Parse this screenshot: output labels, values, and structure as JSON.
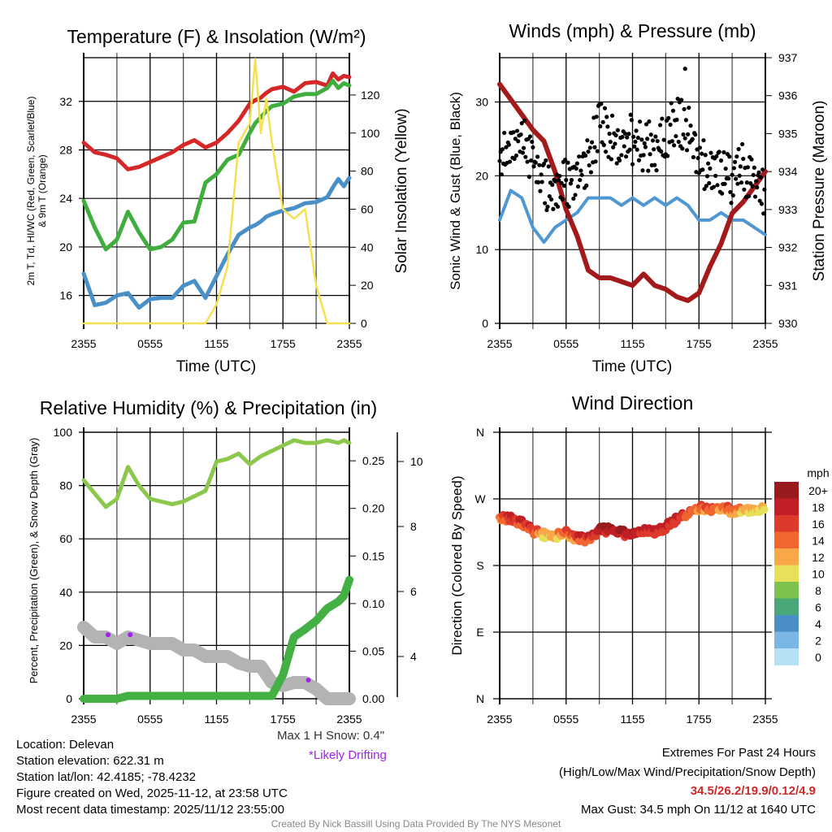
{
  "chart_data": [
    {
      "type": "line",
      "id": "temperature",
      "title": "Temperature (F) & Insolation (W/m²)",
      "xlabel": "Time (UTC)",
      "ylabel": "2m T, Td, HI/WC (Red, Green, Scarlet/Blue) & 9m T (Orange)",
      "ylabel_right": "Solar Insolation (Yellow)",
      "x_ticks": [
        "2355",
        "0555",
        "1155",
        "1755",
        "2355"
      ],
      "x_hours_range": [
        0,
        24
      ],
      "ylim": [
        13.7,
        35.6
      ],
      "y_ticks": [
        16,
        20,
        24,
        28,
        32
      ],
      "ylim_right": [
        0,
        139.6
      ],
      "y_ticks_right": [
        0,
        20,
        40,
        60,
        80,
        100,
        120
      ],
      "grid": true,
      "x": [
        0,
        1,
        2,
        3,
        4,
        5,
        6,
        7,
        8,
        9,
        10,
        11,
        12,
        13,
        14,
        15,
        15.5,
        16,
        16.5,
        17,
        18,
        19,
        20,
        21,
        22,
        22.5,
        23,
        23.5,
        24
      ],
      "series": [
        {
          "name": "2m T",
          "color": "#d62728",
          "axis": "left",
          "values": [
            28.6,
            27.8,
            27.6,
            27.3,
            26.4,
            26.6,
            27.0,
            27.4,
            27.8,
            28.4,
            28.8,
            28.2,
            28.6,
            29.4,
            30.4,
            31.8,
            32.1,
            32.3,
            32.7,
            33.0,
            33.2,
            32.8,
            33.5,
            33.6,
            33.3,
            34.3,
            33.8,
            34.1,
            34.0
          ]
        },
        {
          "name": "Dewpoint",
          "color": "#3fae3f",
          "axis": "left",
          "values": [
            23.8,
            21.6,
            19.8,
            20.6,
            22.9,
            21.2,
            19.8,
            20.0,
            20.6,
            22.0,
            22.1,
            25.3,
            26.0,
            27.2,
            27.6,
            29.4,
            30.2,
            30.7,
            31.2,
            31.6,
            31.8,
            32.4,
            32.6,
            32.6,
            33.1,
            33.7,
            33.1,
            33.5,
            33.3
          ]
        },
        {
          "name": "Wind Chill",
          "color": "#4a90c8",
          "axis": "left",
          "values": [
            17.8,
            15.2,
            15.4,
            16.0,
            16.2,
            15.0,
            15.7,
            15.8,
            15.8,
            16.8,
            17.2,
            15.8,
            17.6,
            19.4,
            21.0,
            21.6,
            21.8,
            22.1,
            22.5,
            22.7,
            23.0,
            23.2,
            23.6,
            23.7,
            24.1,
            24.9,
            25.6,
            25.0,
            25.7
          ]
        },
        {
          "name": "Solar Insolation",
          "color": "#f5e050",
          "axis": "right",
          "values": [
            0,
            0,
            0,
            0,
            0,
            0,
            0,
            0,
            0,
            0,
            0,
            0,
            10,
            30,
            95,
            105,
            139,
            100,
            118,
            95,
            60,
            55,
            60,
            20,
            0,
            0,
            0,
            0,
            0
          ]
        }
      ]
    },
    {
      "type": "line",
      "id": "winds",
      "title": "Winds (mph) & Pressure (mb)",
      "xlabel": "Time (UTC)",
      "ylabel": "Sonic Wind & Gust (Blue, Black)",
      "ylabel_right": "Station Pressure (Maroon)",
      "x_ticks": [
        "2355",
        "0555",
        "1155",
        "1755",
        "2355"
      ],
      "x_hours_range": [
        0,
        24
      ],
      "ylim": [
        0,
        36
      ],
      "y_ticks": [
        0,
        10,
        20,
        30
      ],
      "ylim_right": [
        930,
        937
      ],
      "y_ticks_right": [
        930,
        931,
        932,
        933,
        934,
        935,
        936,
        937
      ],
      "grid": true,
      "x": [
        0,
        1,
        2,
        3,
        4,
        5,
        6,
        7,
        8,
        9,
        10,
        11,
        12,
        13,
        14,
        15,
        16,
        17,
        18,
        19,
        20,
        21,
        22,
        23,
        24
      ],
      "series": [
        {
          "name": "Sonic Wind",
          "color": "#4f97d2",
          "axis": "left",
          "values": [
            14,
            18,
            17,
            13,
            11,
            13,
            14,
            15,
            17,
            17,
            17,
            16,
            17,
            16,
            17,
            16,
            17,
            16,
            14,
            14,
            15,
            14,
            14,
            13,
            12
          ]
        },
        {
          "name": "Pressure",
          "color": "#a31a1a",
          "axis": "right",
          "values": [
            936.3,
            935.9,
            935.5,
            935.1,
            934.8,
            934.0,
            933.0,
            932.3,
            931.4,
            931.2,
            931.2,
            931.1,
            931.0,
            931.3,
            931.0,
            930.9,
            930.7,
            930.6,
            930.8,
            931.5,
            932.1,
            932.9,
            933.2,
            933.6,
            934.0
          ]
        },
        {
          "name": "Gust",
          "color": "#000000",
          "axis": "left",
          "style": "dots",
          "values": [
            22,
            23,
            26,
            22,
            19,
            18,
            19,
            20,
            22,
            27,
            25,
            24,
            25,
            24,
            24,
            25,
            28,
            26,
            23,
            20,
            21,
            19,
            21,
            19,
            18
          ]
        }
      ],
      "max_gust_point": {
        "hour": 16.75,
        "value": 34.5
      }
    },
    {
      "type": "line",
      "id": "humidity",
      "title": "Relative Humidity (%) & Precipitation (in)",
      "ylabel": "Percent, Precipitation (Green), & Snow Depth (Gray)",
      "x_ticks": [
        "2355",
        "0555",
        "1155",
        "1755",
        "2355"
      ],
      "x_hours_range": [
        0,
        24
      ],
      "ylim": [
        0,
        100
      ],
      "y_ticks": [
        0,
        20,
        40,
        60,
        80,
        100
      ],
      "ylim_right": [
        0,
        0.28
      ],
      "y_ticks_right": [
        "0.00",
        "0.05",
        "0.10",
        "0.15",
        "0.20",
        "0.25"
      ],
      "ylim_snow": [
        2.7,
        10.9
      ],
      "y_ticks_snow": [
        4,
        6,
        8,
        10
      ],
      "grid": true,
      "x": [
        0,
        1,
        2,
        3,
        4,
        5,
        6,
        7,
        8,
        9,
        10,
        11,
        12,
        13,
        14,
        15,
        16,
        17,
        18,
        19,
        20,
        21,
        22,
        23,
        23.5,
        24
      ],
      "series": [
        {
          "name": "Relative Humidity",
          "color": "#8cc84b",
          "axis": "left",
          "values": [
            82,
            77,
            72,
            75,
            87,
            80,
            75,
            74,
            73,
            74,
            76,
            78,
            89,
            90,
            92,
            88,
            91,
            93,
            95,
            97,
            96,
            96,
            97,
            96,
            97,
            96
          ]
        },
        {
          "name": "Precipitation",
          "color": "#44b044",
          "axis": "right",
          "values": [
            0,
            0,
            0,
            0,
            0.003,
            0.003,
            0.003,
            0.003,
            0.003,
            0.003,
            0.003,
            0.003,
            0.003,
            0.003,
            0.003,
            0.003,
            0.003,
            0.003,
            0.025,
            0.065,
            0.073,
            0.082,
            0.095,
            0.102,
            0.108,
            0.125
          ]
        },
        {
          "name": "Snow Depth",
          "color": "#b3b3b3",
          "axis": "snow",
          "values": [
            4.9,
            4.6,
            4.6,
            4.4,
            4.6,
            4.5,
            4.4,
            4.4,
            4.4,
            4.2,
            4.2,
            4.0,
            4.0,
            4.0,
            3.8,
            3.7,
            3.7,
            3.2,
            3.1,
            3.2,
            3.2,
            3.0,
            2.7,
            2.7,
            2.7,
            2.7
          ]
        }
      ],
      "drifting_points": [
        {
          "hour": 2.2,
          "value": 24
        },
        {
          "hour": 4.2,
          "value": 24
        },
        {
          "hour": 20.3,
          "value": 7
        }
      ]
    },
    {
      "type": "scatter",
      "id": "wind_direction",
      "title": "Wind Direction",
      "ylabel": "Direction (Colored By Speed)",
      "x_ticks": [
        "2355",
        "0555",
        "1155",
        "1755",
        "2355"
      ],
      "x_hours_range": [
        0,
        24
      ],
      "y_ticks": [
        "N",
        "E",
        "S",
        "W",
        "N"
      ],
      "ylim": [
        0,
        360
      ],
      "grid": true,
      "x": [
        0,
        1,
        2,
        3,
        4,
        5,
        6,
        7,
        8,
        9,
        10,
        11,
        12,
        13,
        14,
        15,
        16,
        17,
        18,
        19,
        20,
        21,
        22,
        23,
        24
      ],
      "direction_deg": [
        245,
        244,
        238,
        226,
        222,
        219,
        224,
        216,
        216,
        228,
        228,
        224,
        222,
        226,
        226,
        232,
        242,
        252,
        258,
        256,
        259,
        254,
        256,
        252,
        258
      ],
      "speed_mph": [
        15,
        18,
        17,
        16,
        12,
        13,
        15,
        16,
        17,
        19,
        19,
        19,
        19,
        18,
        18,
        18,
        18,
        16,
        15,
        16,
        14,
        15,
        13,
        12,
        11
      ],
      "colorbar": {
        "title": "mph",
        "labels": [
          "20+",
          "18",
          "16",
          "14",
          "12",
          "10",
          "8",
          "6",
          "4",
          "2",
          "0"
        ],
        "colors": [
          "#981c1e",
          "#c01f26",
          "#dd3a2c",
          "#f0662e",
          "#f8a848",
          "#e6e05a",
          "#7cc24c",
          "#4aa878",
          "#4a8ec8",
          "#7ab6e4",
          "#b6e0f6"
        ]
      }
    }
  ],
  "footer": {
    "location": "Location: Delevan",
    "elevation": "Station elevation: 622.31 m",
    "latlon": "Station lat/lon: 42.4185; -78.4232",
    "created": "Figure created on Wed, 2025-11-12, at 23:58 UTC",
    "recent": "Most recent data timestamp: 2025/11/12 23:55:00",
    "max_snow": "Max 1 H Snow: 0.4\"",
    "drifting": "*Likely Drifting",
    "extremes_title": "Extremes For Past 24 Hours",
    "extremes_legend": "(High/Low/Max Wind/Precipitation/Snow Depth)",
    "extremes_values": "34.5/26.2/19.9/0.12/4.9",
    "max_gust": "Max Gust: 34.5 mph On 11/12 at 1640 UTC",
    "credit": "Created By Nick Bassill Using Data Provided By The NYS Mesonet"
  },
  "colors": {
    "drifting": "#a020f0",
    "extremes": "#cc2a2a",
    "credit": "#888888"
  }
}
